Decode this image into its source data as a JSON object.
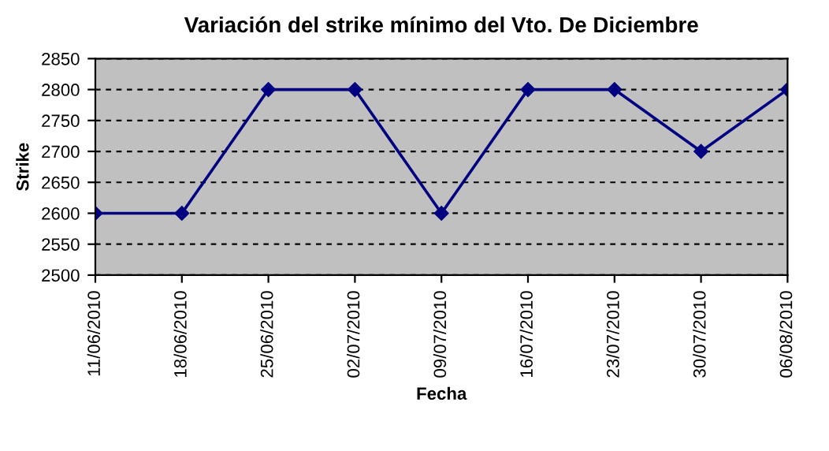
{
  "chart_data": {
    "type": "line",
    "title": "Variación del strike mínimo del Vto. De Diciembre",
    "xlabel": "Fecha",
    "ylabel": "Strike",
    "categories": [
      "11/06/2010",
      "18/06/2010",
      "25/06/2010",
      "02/07/2010",
      "09/07/2010",
      "16/07/2010",
      "23/07/2010",
      "30/07/2010",
      "06/08/2010"
    ],
    "series": [
      {
        "color": "#000080",
        "values": [
          2600,
          2600,
          2800,
          2800,
          2600,
          2800,
          2800,
          2700,
          2800
        ]
      }
    ],
    "ylim": [
      2500,
      2850
    ],
    "yticks": [
      2500,
      2550,
      2600,
      2650,
      2700,
      2750,
      2800,
      2850
    ],
    "grid": "y",
    "marker": "diamond",
    "line_style": "solid",
    "legend": false
  }
}
